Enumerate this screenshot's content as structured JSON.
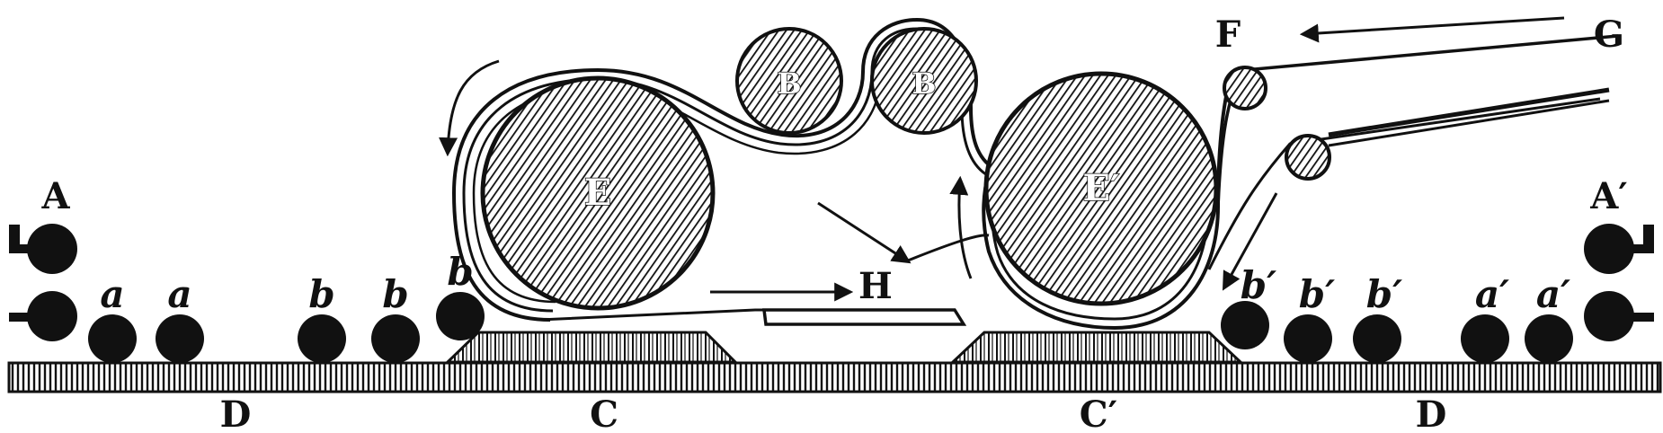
{
  "labels": {
    "A": "A",
    "A_prime": "A′",
    "a": "a",
    "a_prime": "a′",
    "b": "b",
    "b_prime": "b′",
    "D": "D",
    "C": "C",
    "C_prime": "C′",
    "E": "E",
    "E_prime": "E′",
    "B": "B",
    "B2": "B",
    "H": "H",
    "F": "F",
    "G": "G"
  },
  "colors": {
    "ink": "#111111",
    "paper": "#ffffff"
  }
}
